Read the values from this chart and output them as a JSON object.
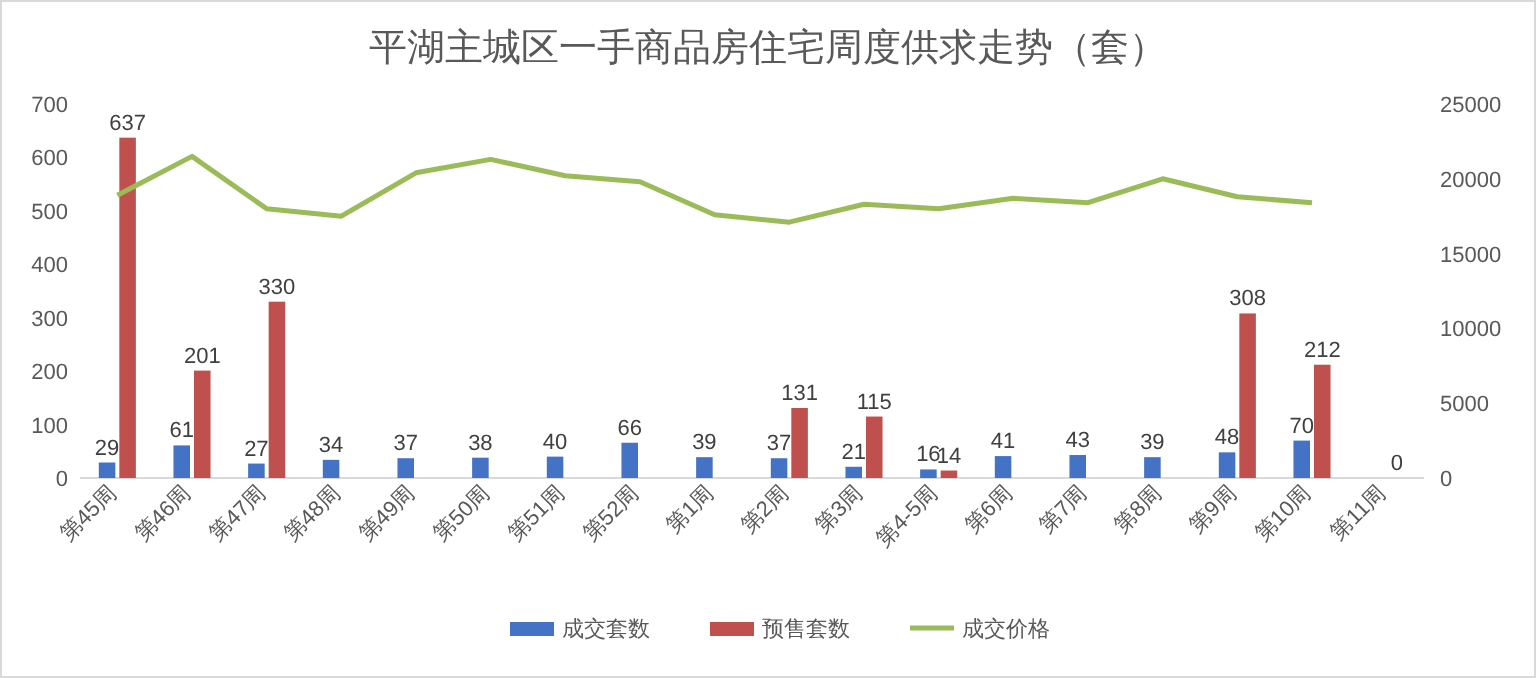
{
  "chart_data": {
    "type": "bar",
    "title": "平湖主城区一手商品房住宅周度供求走势（套）",
    "categories": [
      "第45周",
      "第46周",
      "第47周",
      "第48周",
      "第49周",
      "第50周",
      "第51周",
      "第52周",
      "第1周",
      "第2周",
      "第3周",
      "第4-5周",
      "第6周",
      "第7周",
      "第8周",
      "第9周",
      "第10周",
      "第11周"
    ],
    "series": [
      {
        "name": "成交套数",
        "color": "#4472c4",
        "values": [
          29,
          61,
          27,
          34,
          37,
          38,
          40,
          66,
          39,
          37,
          21,
          16,
          41,
          43,
          39,
          48,
          70,
          null
        ],
        "value_labels": [
          "29",
          "61",
          "27",
          "34",
          "37",
          "38",
          "40",
          "66",
          "39",
          "37",
          "21",
          "16",
          "41",
          "43",
          "39",
          "48",
          "70",
          null
        ]
      },
      {
        "name": "预售套数",
        "color": "#c0504d",
        "values": [
          637,
          201,
          330,
          null,
          null,
          null,
          null,
          null,
          null,
          131,
          115,
          14,
          null,
          null,
          null,
          308,
          212,
          0
        ],
        "value_labels": [
          "637",
          "201",
          "330",
          null,
          null,
          null,
          null,
          null,
          null,
          "131",
          "115",
          "14",
          null,
          null,
          null,
          "308",
          "212",
          "0"
        ]
      },
      {
        "name": "成交价格",
        "type": "line",
        "axis": "y2",
        "color": "#9bbb59",
        "values": [
          18900,
          21500,
          18000,
          17500,
          20400,
          21300,
          20200,
          19800,
          17600,
          17100,
          18300,
          18000,
          18700,
          18400,
          20000,
          18800,
          18400,
          null
        ]
      }
    ],
    "ylim": [
      0,
      700
    ],
    "yticks": [
      0,
      100,
      200,
      300,
      400,
      500,
      600,
      700
    ],
    "y2lim": [
      0,
      25000
    ],
    "y2ticks": [
      0,
      5000,
      10000,
      15000,
      20000,
      25000
    ],
    "legend": "bottom",
    "grid": false
  }
}
